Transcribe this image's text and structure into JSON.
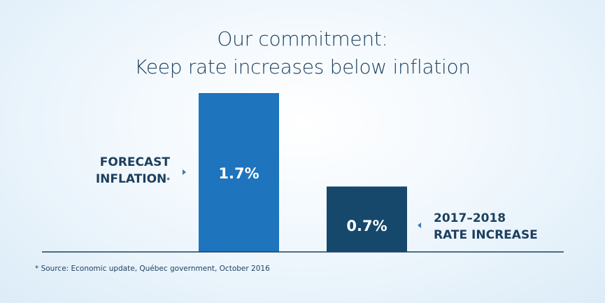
{
  "chart_data": {
    "type": "bar",
    "title_lines": [
      "Our commitment:",
      "Keep rate increases below inflation"
    ],
    "ylim": [
      0,
      1.7
    ],
    "bars": [
      {
        "label_lines": [
          "FORECAST",
          "INFLATION"
        ],
        "label_marker": "*",
        "value": 1.7,
        "value_label": "1.7%",
        "color": "#1e74bd"
      },
      {
        "label_lines": [
          "2017–2018",
          "RATE INCREASE"
        ],
        "value": 0.7,
        "value_label": "0.7%",
        "color": "#16486c"
      }
    ],
    "footnote": "* Source: Economic update, Québec government, October 2016"
  },
  "colors": {
    "text": "#1c3f5e",
    "baseline": "#1c3f5e",
    "pointer": "#3a78b8"
  }
}
